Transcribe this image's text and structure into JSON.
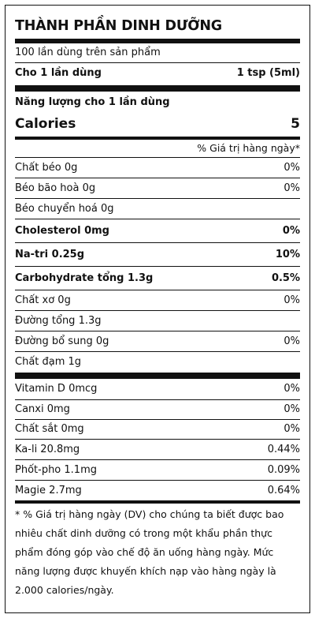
{
  "title": "THÀNH PHẦN DINH DƯỠNG",
  "servings_per_container": "100 lần dùng trên sản phẩm",
  "serving_size": {
    "label": "Cho 1 lần dùng",
    "value": "1 tsp (5ml)"
  },
  "energy_label": "Năng lượng cho 1 lần dùng",
  "calories": {
    "label": "Calories",
    "value": "5"
  },
  "dv_header": "% Giá trị hàng ngày*",
  "nutrients": [
    {
      "label": "Chất béo 0g",
      "dv": "0%"
    },
    {
      "label": "Béo bão hoà 0g",
      "dv": "0%"
    },
    {
      "label": "Béo chuyển hoá 0g",
      "dv": ""
    },
    {
      "label": "Cholesterol 0mg",
      "dv": "0%"
    },
    {
      "label": "Na-tri 0.25g",
      "dv": "10%"
    },
    {
      "label": "Carbohydrate tổng 1.3g",
      "dv": "0.5%"
    },
    {
      "label": "Chất xơ 0g",
      "dv": "0%"
    },
    {
      "label": "Đường tổng 1.3g",
      "dv": ""
    },
    {
      "label": "Đường bổ sung 0g",
      "dv": "0%"
    },
    {
      "label": "Chất đạm 1g",
      "dv": ""
    }
  ],
  "micronutrients": [
    {
      "label": "Vitamin D 0mcg",
      "dv": "0%"
    },
    {
      "label": "Canxi 0mg",
      "dv": "0%"
    },
    {
      "label": "Chất sắt 0mg",
      "dv": "0%"
    },
    {
      "label": "Ka-li 20.8mg",
      "dv": "0.44%"
    },
    {
      "label": "Phốt-pho 1.1mg",
      "dv": "0.09%"
    },
    {
      "label": "Magie 2.7mg",
      "dv": "0.64%"
    }
  ],
  "footnote": "* % Giá trị hàng ngày (DV) cho chúng ta biết được bao nhiêu chất dinh dưỡng có trong một khẩu phần thực phẩm đóng góp vào chế độ ăn uống hàng ngày. Mức năng lượng được khuyến khích nạp vào hàng ngày là 2.000 calories/ngày."
}
